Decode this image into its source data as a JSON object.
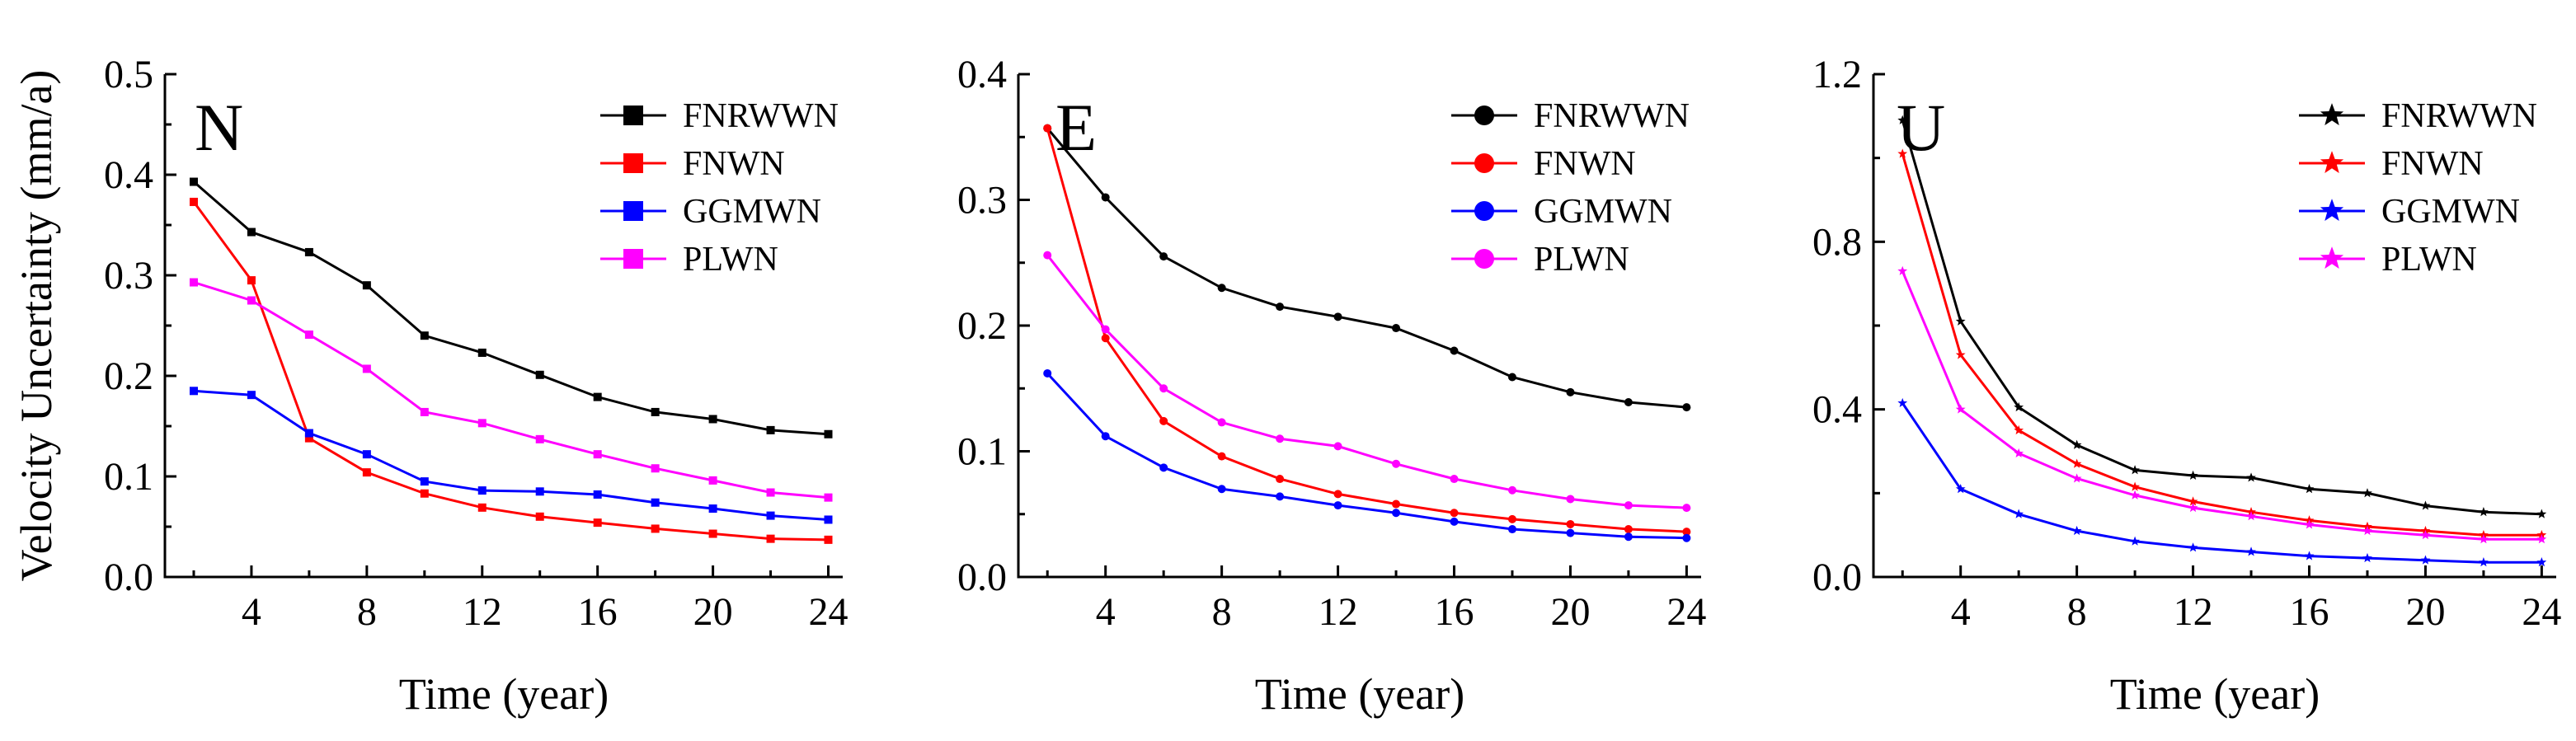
{
  "figure": {
    "ylabel": "Velocity Uncertainty (mm/a)"
  },
  "chart_data": [
    {
      "type": "line",
      "panel": "N",
      "xlabel": "Time (year)",
      "ylabel": "Velocity Uncertainty (mm/a)",
      "xlim": [
        1,
        24.5
      ],
      "ylim": [
        0,
        0.5
      ],
      "xticks": [
        4,
        8,
        12,
        16,
        20,
        24
      ],
      "yticks": [
        0.0,
        0.1,
        0.2,
        0.3,
        0.4,
        0.5
      ],
      "ytick_labels": [
        "0.0",
        "0.1",
        "0.2",
        "0.3",
        "0.4",
        "0.5"
      ],
      "marker": "square",
      "x": [
        2,
        4,
        6,
        8,
        10,
        12,
        14,
        16,
        18,
        20,
        22,
        24
      ],
      "series": [
        {
          "name": "FNRWWN",
          "color": "#000000",
          "values": [
            0.393,
            0.343,
            0.323,
            0.29,
            0.24,
            0.223,
            0.201,
            0.179,
            0.164,
            0.157,
            0.146,
            0.142
          ]
        },
        {
          "name": "FNWN",
          "color": "#ff0000",
          "values": [
            0.373,
            0.295,
            0.138,
            0.104,
            0.083,
            0.069,
            0.06,
            0.054,
            0.048,
            0.043,
            0.038,
            0.037
          ]
        },
        {
          "name": "GGMWN",
          "color": "#0000ff",
          "values": [
            0.185,
            0.181,
            0.143,
            0.122,
            0.095,
            0.086,
            0.085,
            0.082,
            0.074,
            0.068,
            0.061,
            0.057
          ]
        },
        {
          "name": "PLWN",
          "color": "#ff00ff",
          "values": [
            0.293,
            0.275,
            0.241,
            0.207,
            0.164,
            0.153,
            0.137,
            0.122,
            0.108,
            0.096,
            0.084,
            0.079
          ]
        }
      ]
    },
    {
      "type": "line",
      "panel": "E",
      "xlabel": "Time (year)",
      "ylabel": "",
      "xlim": [
        1,
        24.5
      ],
      "ylim": [
        0,
        0.4
      ],
      "xticks": [
        4,
        8,
        12,
        16,
        20,
        24
      ],
      "yticks": [
        0.0,
        0.1,
        0.2,
        0.3,
        0.4
      ],
      "ytick_labels": [
        "0.0",
        "0.1",
        "0.2",
        "0.3",
        "0.4"
      ],
      "marker": "circle",
      "x": [
        2,
        4,
        6,
        8,
        10,
        12,
        14,
        16,
        18,
        20,
        22,
        24
      ],
      "series": [
        {
          "name": "FNRWWN",
          "color": "#000000",
          "values": [
            0.357,
            0.302,
            0.255,
            0.23,
            0.215,
            0.207,
            0.198,
            0.18,
            0.159,
            0.147,
            0.139,
            0.135
          ]
        },
        {
          "name": "FNWN",
          "color": "#ff0000",
          "values": [
            0.357,
            0.19,
            0.124,
            0.096,
            0.078,
            0.066,
            0.058,
            0.051,
            0.046,
            0.042,
            0.038,
            0.036
          ]
        },
        {
          "name": "GGMWN",
          "color": "#0000ff",
          "values": [
            0.162,
            0.112,
            0.087,
            0.07,
            0.064,
            0.057,
            0.051,
            0.044,
            0.038,
            0.035,
            0.032,
            0.031
          ]
        },
        {
          "name": "PLWN",
          "color": "#ff00ff",
          "values": [
            0.256,
            0.197,
            0.15,
            0.123,
            0.11,
            0.104,
            0.09,
            0.078,
            0.069,
            0.062,
            0.057,
            0.055
          ]
        }
      ]
    },
    {
      "type": "line",
      "panel": "U",
      "xlabel": "Time (year)",
      "ylabel": "",
      "xlim": [
        1,
        24.5
      ],
      "ylim": [
        0,
        1.2
      ],
      "xticks": [
        4,
        8,
        12,
        16,
        20,
        24
      ],
      "yticks": [
        0.0,
        0.4,
        0.8,
        1.2
      ],
      "ytick_labels": [
        "0.0",
        "0.4",
        "0.8",
        "1.2"
      ],
      "marker": "star",
      "x": [
        2,
        4,
        6,
        8,
        10,
        12,
        14,
        16,
        18,
        20,
        22,
        24
      ],
      "series": [
        {
          "name": "FNRWWN",
          "color": "#000000",
          "values": [
            1.09,
            0.61,
            0.405,
            0.315,
            0.255,
            0.242,
            0.237,
            0.21,
            0.2,
            0.17,
            0.155,
            0.15
          ]
        },
        {
          "name": "FNWN",
          "color": "#ff0000",
          "values": [
            1.01,
            0.53,
            0.35,
            0.27,
            0.215,
            0.18,
            0.155,
            0.135,
            0.12,
            0.11,
            0.1,
            0.1
          ]
        },
        {
          "name": "GGMWN",
          "color": "#0000ff",
          "values": [
            0.415,
            0.21,
            0.15,
            0.11,
            0.085,
            0.07,
            0.06,
            0.05,
            0.045,
            0.04,
            0.035,
            0.035
          ]
        },
        {
          "name": "PLWN",
          "color": "#ff00ff",
          "values": [
            0.73,
            0.4,
            0.295,
            0.235,
            0.195,
            0.165,
            0.145,
            0.125,
            0.11,
            0.1,
            0.09,
            0.09
          ]
        }
      ]
    }
  ]
}
